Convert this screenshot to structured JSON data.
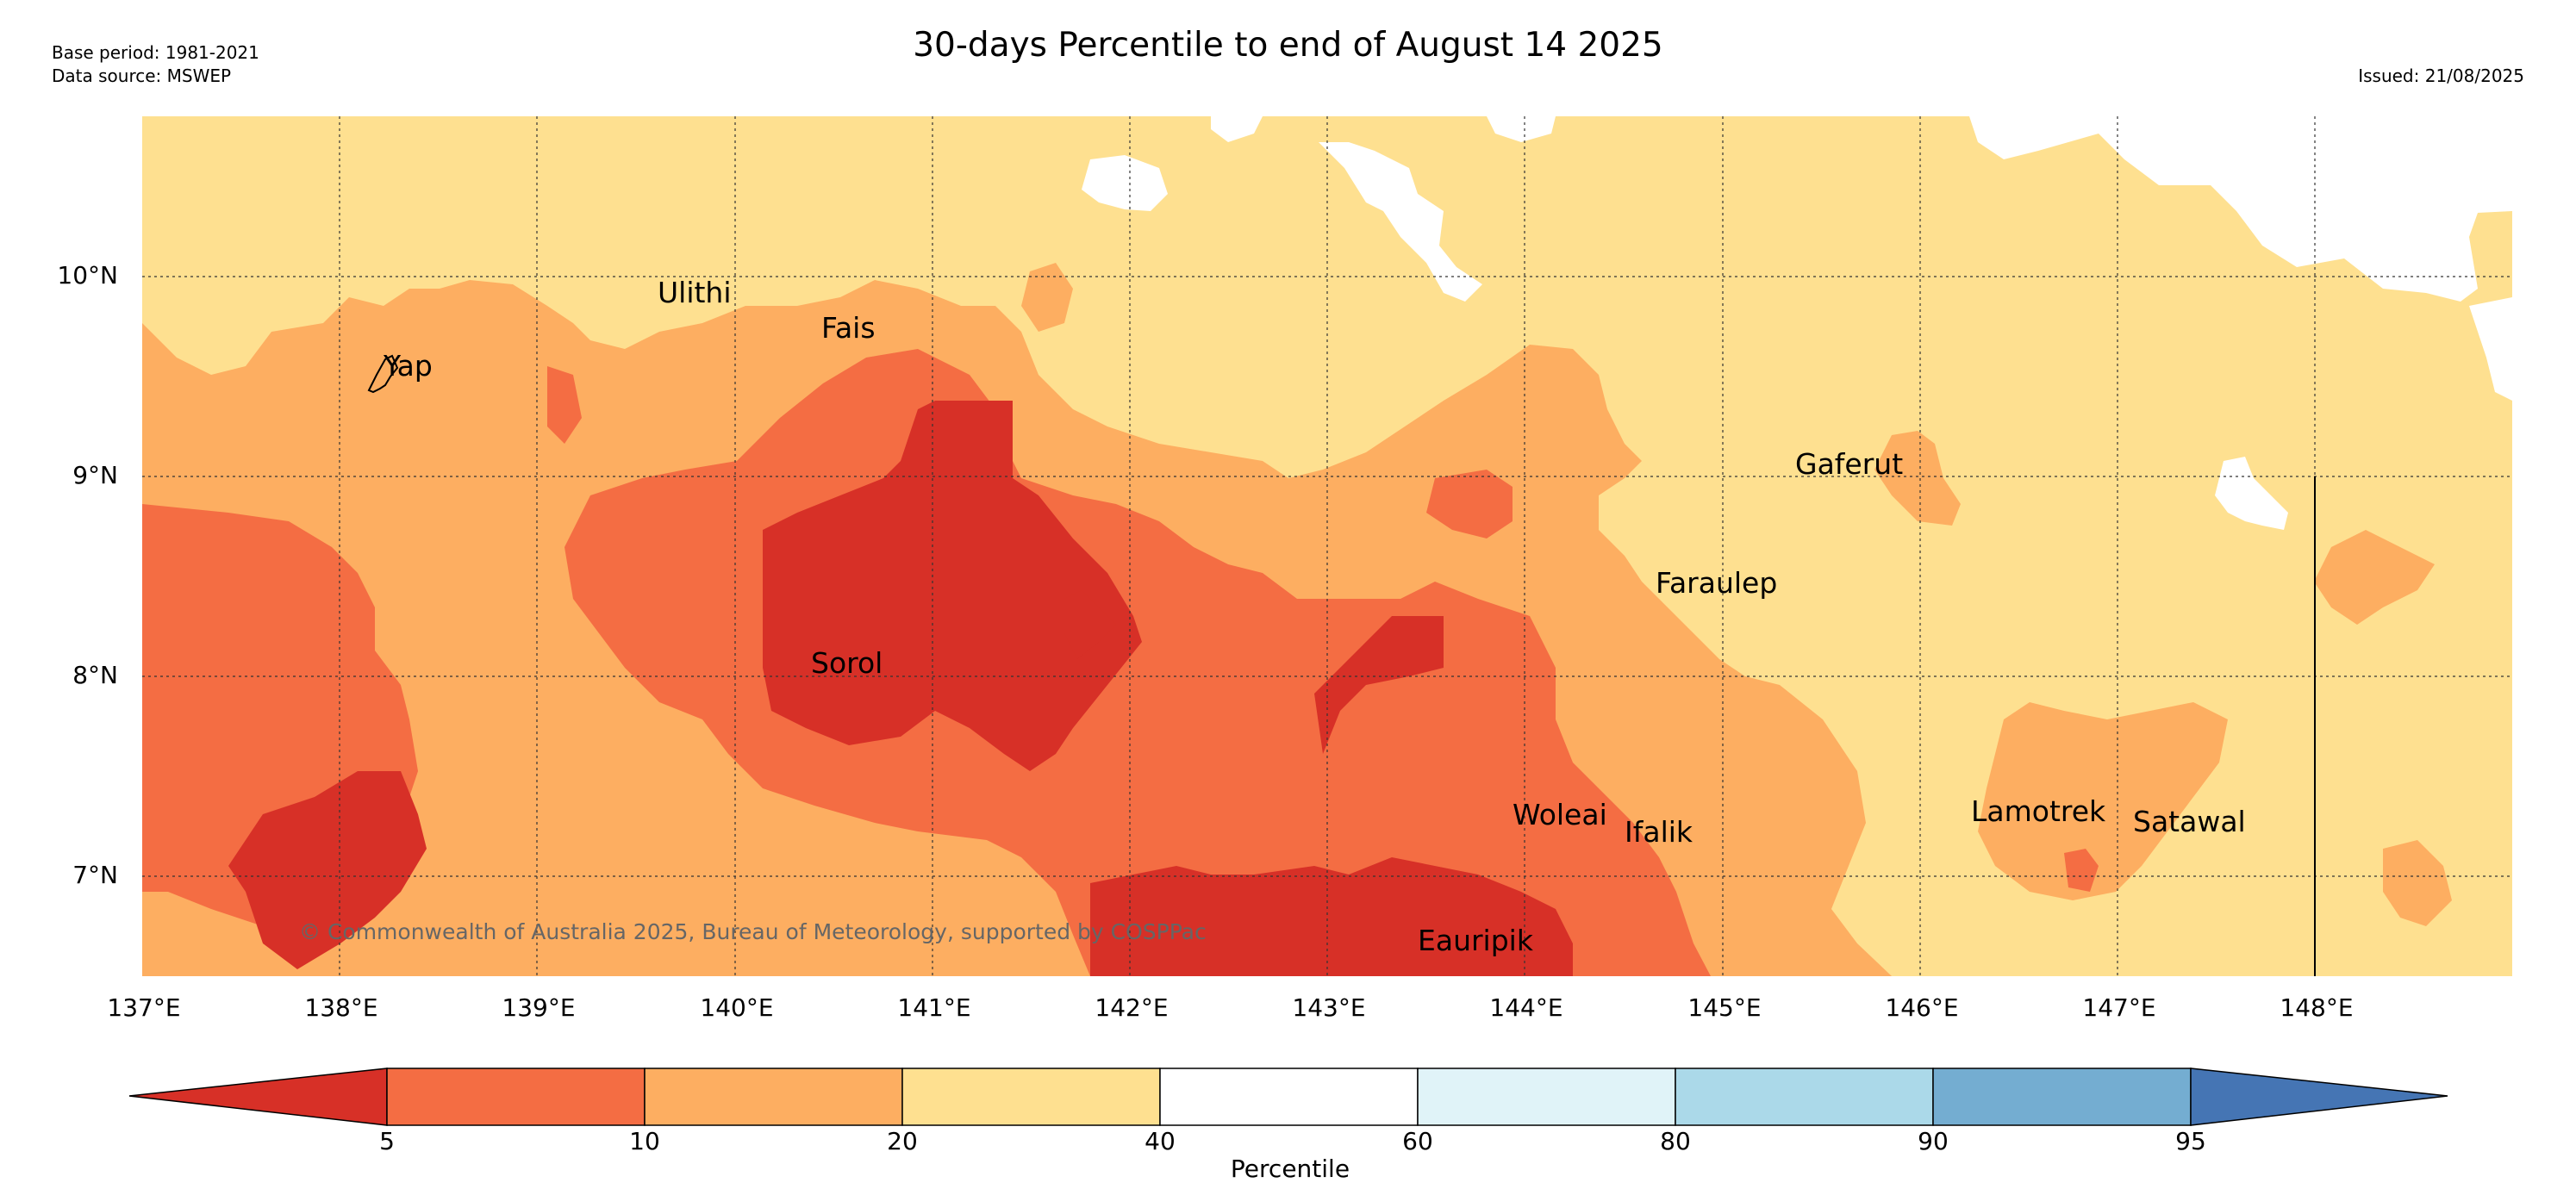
{
  "header": {
    "base_period": "Base period: 1981-2021",
    "data_source": "Data source: MSWEP",
    "title": "30-days Percentile to end of August 14 2025",
    "issued": "Issued: 21/08/2025"
  },
  "axes": {
    "latitudes": [
      "10°N",
      "9°N",
      "8°N",
      "7°N"
    ],
    "longitudes": [
      "137°E",
      "138°E",
      "139°E",
      "140°E",
      "141°E",
      "142°E",
      "143°E",
      "144°E",
      "145°E",
      "146°E",
      "147°E",
      "148°E"
    ]
  },
  "places": [
    {
      "name": "Yap"
    },
    {
      "name": "Ulithi"
    },
    {
      "name": "Fais"
    },
    {
      "name": "Sorol"
    },
    {
      "name": "Gaferut"
    },
    {
      "name": "Faraulep"
    },
    {
      "name": "Woleai"
    },
    {
      "name": "Ifalik"
    },
    {
      "name": "Lamotrek"
    },
    {
      "name": "Satawal"
    },
    {
      "name": "Eauripik"
    }
  ],
  "copyright": "© Commonwealth of Australia 2025, Bureau of Meteorology, supported by COSPPac",
  "colorbar": {
    "title": "Percentile",
    "ticks": [
      "5",
      "10",
      "20",
      "40",
      "60",
      "80",
      "90",
      "95"
    ],
    "colors": {
      "below_5": "#d73027",
      "p5_10": "#f46d43",
      "p10_20": "#fdae61",
      "p20_40": "#fee090",
      "p40_60": "#ffffff",
      "p60_80": "#e0f3f8",
      "p80_90": "#abd9e9",
      "p90_95": "#74add1",
      "above_95": "#4575b4"
    }
  }
}
